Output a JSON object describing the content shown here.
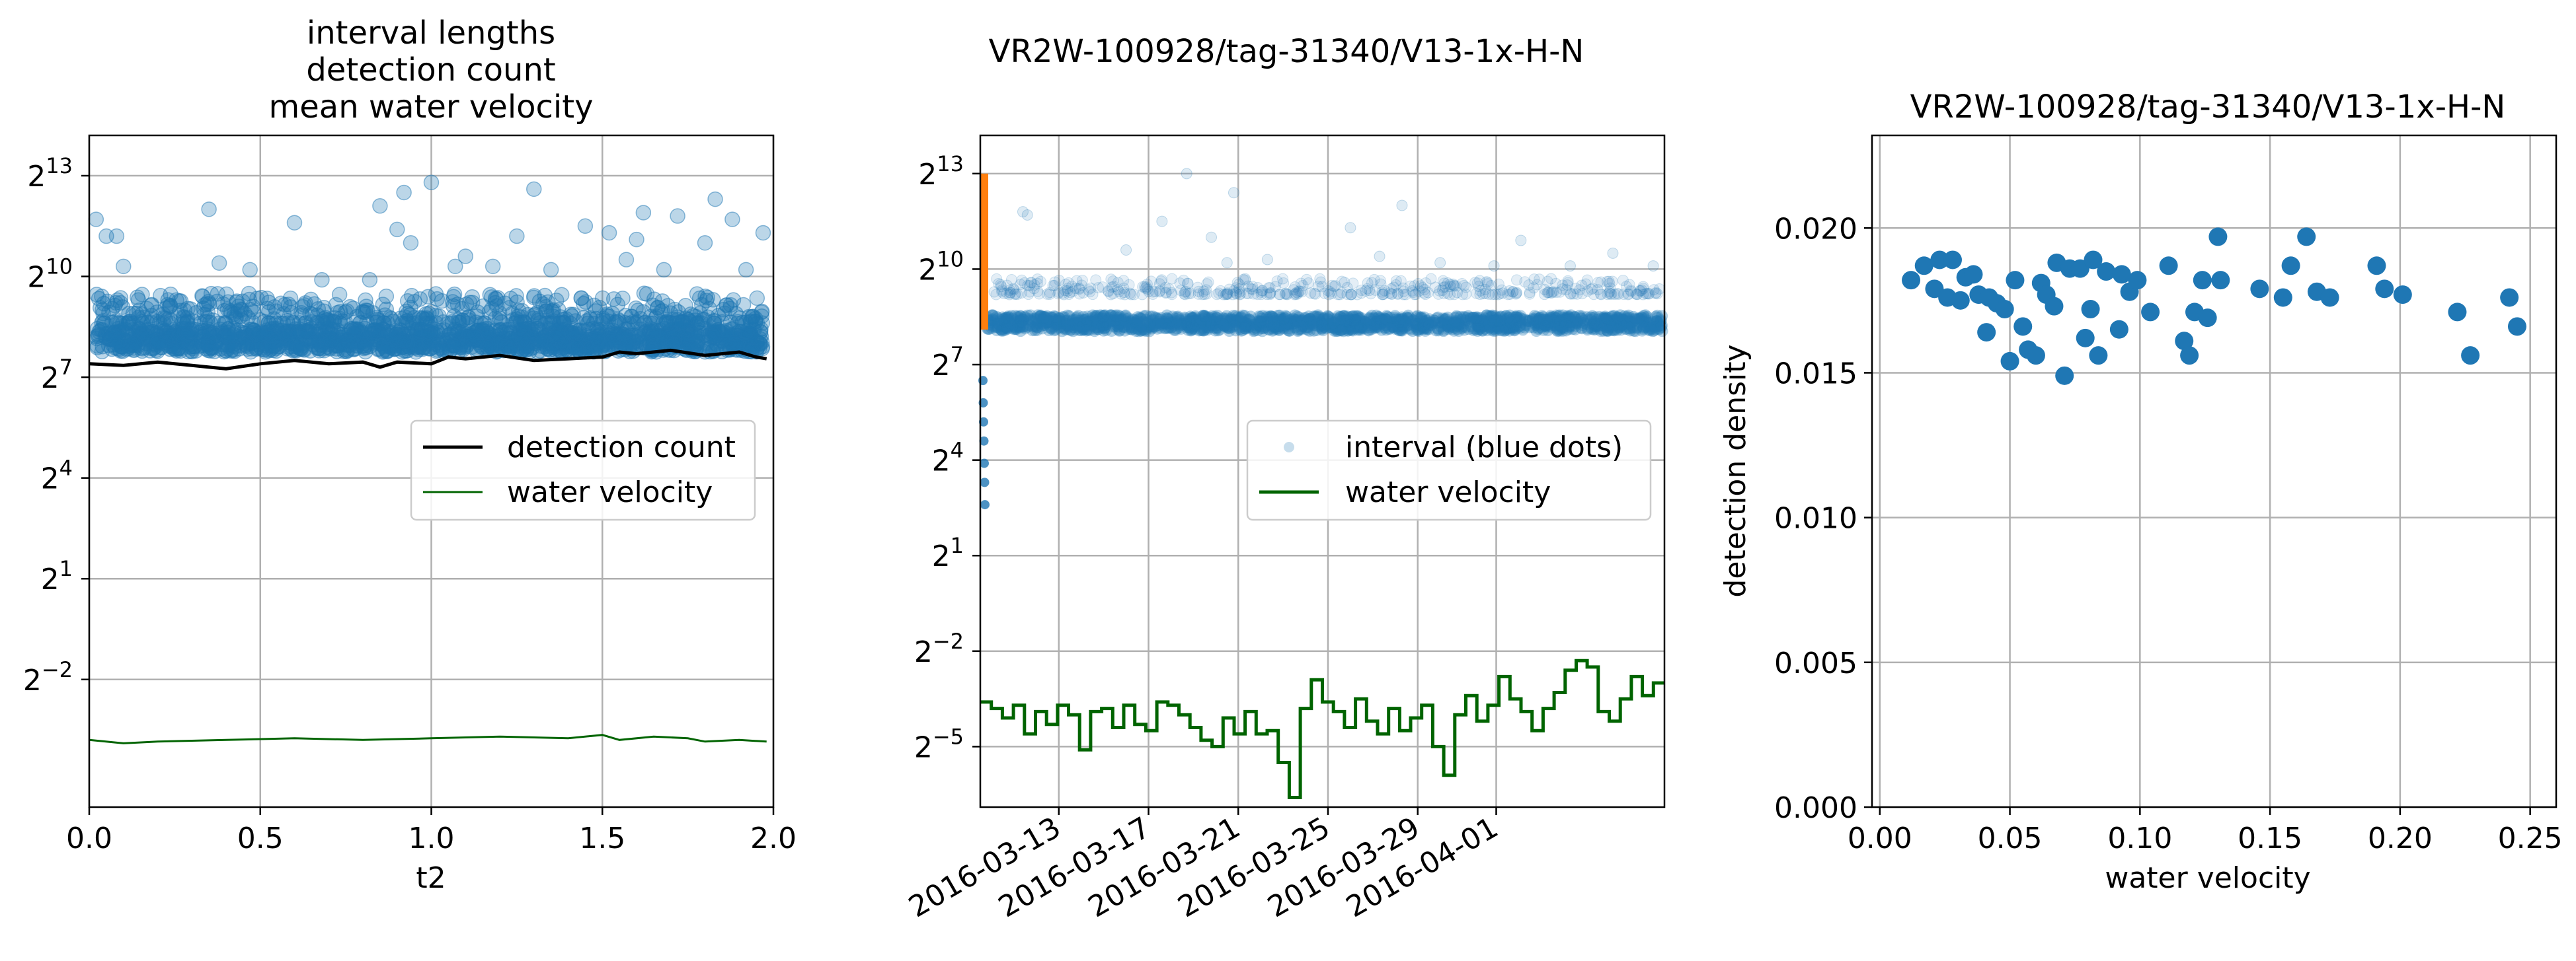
{
  "figure": {
    "suptitle": "VR2W-100928/tag-31340/V13-1x-H-N"
  },
  "chart_data": [
    {
      "type": "scatter",
      "title_lines": [
        "interval lengths",
        "detection count",
        "mean water velocity"
      ],
      "xlabel": "t2",
      "ylabel": "",
      "xlim": [
        0,
        2
      ],
      "ylim_log2": [
        -5.8,
        14.2
      ],
      "y_scale": "log2",
      "x_ticks": [
        "0.0",
        "0.5",
        "1.0",
        "1.5",
        "2.0"
      ],
      "y_ticks": [
        {
          "base": "2",
          "exp": "13",
          "value": 13
        },
        {
          "base": "2",
          "exp": "10",
          "value": 10
        },
        {
          "base": "2",
          "exp": "7",
          "value": 7
        },
        {
          "base": "2",
          "exp": "4",
          "value": 4
        },
        {
          "base": "2",
          "exp": "1",
          "value": 1
        },
        {
          "base": "2",
          "exp": "−2",
          "value": -2
        }
      ],
      "grid": true,
      "legend_position": "center-right",
      "legend": [
        {
          "label": "detection count",
          "color": "#000000",
          "kind": "line"
        },
        {
          "label": "water velocity",
          "color": "#006400",
          "kind": "line"
        }
      ],
      "series": [
        {
          "kind": "scatter",
          "color": "#1f77b4",
          "alpha": 0.3,
          "band_log2": [
            7.75,
            8.45
          ],
          "upper_cloud_log2": [
            8.6,
            9.5
          ],
          "outliers_log2": [
            [
              0.02,
              11.7
            ],
            [
              0.05,
              11.2
            ],
            [
              0.08,
              11.2
            ],
            [
              0.1,
              10.3
            ],
            [
              0.35,
              12.0
            ],
            [
              0.38,
              10.4
            ],
            [
              0.47,
              10.2
            ],
            [
              0.6,
              11.6
            ],
            [
              0.68,
              9.9
            ],
            [
              0.82,
              9.9
            ],
            [
              0.85,
              12.1
            ],
            [
              0.9,
              11.4
            ],
            [
              0.92,
              12.5
            ],
            [
              0.94,
              11.0
            ],
            [
              1.0,
              12.8
            ],
            [
              1.07,
              10.3
            ],
            [
              1.1,
              10.6
            ],
            [
              1.18,
              10.3
            ],
            [
              1.25,
              11.2
            ],
            [
              1.3,
              12.6
            ],
            [
              1.35,
              10.2
            ],
            [
              1.45,
              11.5
            ],
            [
              1.52,
              11.3
            ],
            [
              1.57,
              10.5
            ],
            [
              1.6,
              11.1
            ],
            [
              1.62,
              11.9
            ],
            [
              1.68,
              10.2
            ],
            [
              1.72,
              11.8
            ],
            [
              1.8,
              11.0
            ],
            [
              1.83,
              12.3
            ],
            [
              1.88,
              11.7
            ],
            [
              1.92,
              10.2
            ],
            [
              1.97,
              11.3
            ]
          ]
        },
        {
          "kind": "line",
          "name": "detection count",
          "color": "#000000",
          "x": [
            0.0,
            0.1,
            0.2,
            0.3,
            0.35,
            0.4,
            0.5,
            0.6,
            0.7,
            0.8,
            0.85,
            0.9,
            1.0,
            1.05,
            1.1,
            1.2,
            1.3,
            1.4,
            1.5,
            1.55,
            1.6,
            1.7,
            1.8,
            1.9,
            1.95,
            1.98
          ],
          "values_log2": [
            7.4,
            7.35,
            7.45,
            7.35,
            7.3,
            7.25,
            7.4,
            7.5,
            7.4,
            7.45,
            7.3,
            7.45,
            7.4,
            7.6,
            7.55,
            7.65,
            7.5,
            7.55,
            7.6,
            7.75,
            7.7,
            7.8,
            7.65,
            7.75,
            7.6,
            7.55
          ]
        },
        {
          "kind": "line",
          "name": "water velocity",
          "color": "#006400",
          "x": [
            0.0,
            0.1,
            0.2,
            0.4,
            0.6,
            0.8,
            1.0,
            1.2,
            1.4,
            1.5,
            1.55,
            1.65,
            1.75,
            1.8,
            1.9,
            1.98
          ],
          "values_log2": [
            -3.8,
            -3.9,
            -3.85,
            -3.8,
            -3.75,
            -3.8,
            -3.75,
            -3.7,
            -3.75,
            -3.65,
            -3.8,
            -3.7,
            -3.75,
            -3.85,
            -3.8,
            -3.85
          ]
        }
      ]
    },
    {
      "type": "scatter",
      "title": "",
      "xlabel": "",
      "ylabel": "",
      "y_scale": "log2",
      "ylim_log2": [
        -6.9,
        14.2
      ],
      "x_ticks": [
        "2016-03-13",
        "2016-03-17",
        "2016-03-21",
        "2016-03-25",
        "2016-03-29",
        "2016-04-01"
      ],
      "y_ticks": [
        {
          "base": "2",
          "exp": "13",
          "value": 13
        },
        {
          "base": "2",
          "exp": "10",
          "value": 10
        },
        {
          "base": "2",
          "exp": "7",
          "value": 7
        },
        {
          "base": "2",
          "exp": "4",
          "value": 4
        },
        {
          "base": "2",
          "exp": "1",
          "value": 1
        },
        {
          "base": "2",
          "exp": "−2",
          "value": -2
        },
        {
          "base": "2",
          "exp": "−5",
          "value": -5
        }
      ],
      "grid": true,
      "legend_position": "center-right",
      "legend": [
        {
          "label": "interval (blue dots)",
          "color": "#1f77b4",
          "kind": "dot"
        },
        {
          "label": "water velocity",
          "color": "#006400",
          "kind": "line"
        }
      ],
      "series": [
        {
          "kind": "bar-marker",
          "color": "#ff7f0e",
          "x_day_offset": 0.1,
          "range_log2": [
            8.1,
            13.0
          ]
        },
        {
          "kind": "scatter",
          "color": "#1f77b4",
          "band_log2": [
            8.05,
            8.55
          ],
          "faint_cloud_log2": [
            9.2,
            9.7
          ],
          "early_low_points_log2": [
            6.5,
            5.8,
            5.2,
            4.6,
            3.9,
            3.3,
            2.6
          ]
        },
        {
          "kind": "line",
          "name": "water velocity",
          "color": "#006400",
          "step": true,
          "values_log2": [
            -3.6,
            -3.8,
            -4.1,
            -3.7,
            -4.6,
            -3.9,
            -4.3,
            -3.7,
            -4.0,
            -5.1,
            -3.9,
            -3.8,
            -4.4,
            -3.7,
            -4.3,
            -4.5,
            -3.6,
            -3.7,
            -4.0,
            -4.4,
            -4.8,
            -5.0,
            -4.1,
            -4.6,
            -3.9,
            -4.6,
            -4.5,
            -5.5,
            -6.6,
            -3.8,
            -2.9,
            -3.6,
            -3.9,
            -4.4,
            -3.5,
            -4.2,
            -4.6,
            -3.8,
            -4.5,
            -4.1,
            -3.7,
            -5.0,
            -5.9,
            -4.0,
            -3.4,
            -4.2,
            -3.7,
            -2.8,
            -3.5,
            -3.9,
            -4.5,
            -3.8,
            -3.3,
            -2.6,
            -2.3,
            -2.5,
            -3.9,
            -4.2,
            -3.5,
            -2.8,
            -3.4,
            -3.0
          ]
        }
      ]
    },
    {
      "type": "scatter",
      "title": "VR2W-100928/tag-31340/V13-1x-H-N",
      "xlabel": "water velocity",
      "ylabel": "detection density",
      "xlim": [
        -0.003,
        0.26
      ],
      "ylim": [
        0.0,
        0.0232
      ],
      "x_ticks": [
        "0.00",
        "0.05",
        "0.10",
        "0.15",
        "0.20",
        "0.25"
      ],
      "y_ticks": [
        "0.000",
        "0.005",
        "0.010",
        "0.015",
        "0.020"
      ],
      "grid": true,
      "points": [
        [
          0.012,
          0.0182
        ],
        [
          0.017,
          0.0187
        ],
        [
          0.021,
          0.0179
        ],
        [
          0.023,
          0.0189
        ],
        [
          0.026,
          0.0176
        ],
        [
          0.028,
          0.0189
        ],
        [
          0.031,
          0.0175
        ],
        [
          0.033,
          0.0183
        ],
        [
          0.036,
          0.0184
        ],
        [
          0.038,
          0.0177
        ],
        [
          0.041,
          0.0164
        ],
        [
          0.042,
          0.0176
        ],
        [
          0.045,
          0.0174
        ],
        [
          0.048,
          0.0172
        ],
        [
          0.05,
          0.0154
        ],
        [
          0.052,
          0.0182
        ],
        [
          0.055,
          0.0166
        ],
        [
          0.057,
          0.0158
        ],
        [
          0.06,
          0.0156
        ],
        [
          0.062,
          0.0181
        ],
        [
          0.064,
          0.0177
        ],
        [
          0.067,
          0.0173
        ],
        [
          0.068,
          0.0188
        ],
        [
          0.071,
          0.0149
        ],
        [
          0.073,
          0.0186
        ],
        [
          0.077,
          0.0186
        ],
        [
          0.079,
          0.0162
        ],
        [
          0.081,
          0.0172
        ],
        [
          0.082,
          0.0189
        ],
        [
          0.084,
          0.0156
        ],
        [
          0.087,
          0.0185
        ],
        [
          0.092,
          0.0165
        ],
        [
          0.093,
          0.0184
        ],
        [
          0.096,
          0.0178
        ],
        [
          0.099,
          0.0182
        ],
        [
          0.104,
          0.0171
        ],
        [
          0.111,
          0.0187
        ],
        [
          0.117,
          0.0161
        ],
        [
          0.119,
          0.0156
        ],
        [
          0.121,
          0.0171
        ],
        [
          0.124,
          0.0182
        ],
        [
          0.126,
          0.0169
        ],
        [
          0.13,
          0.0197
        ],
        [
          0.131,
          0.0182
        ],
        [
          0.146,
          0.0179
        ],
        [
          0.155,
          0.0176
        ],
        [
          0.158,
          0.0187
        ],
        [
          0.164,
          0.0197
        ],
        [
          0.168,
          0.0178
        ],
        [
          0.173,
          0.0176
        ],
        [
          0.191,
          0.0187
        ],
        [
          0.194,
          0.0179
        ],
        [
          0.201,
          0.0177
        ],
        [
          0.222,
          0.0171
        ],
        [
          0.227,
          0.0156
        ],
        [
          0.242,
          0.0176
        ],
        [
          0.245,
          0.0166
        ]
      ],
      "color": "#1f77b4"
    }
  ]
}
